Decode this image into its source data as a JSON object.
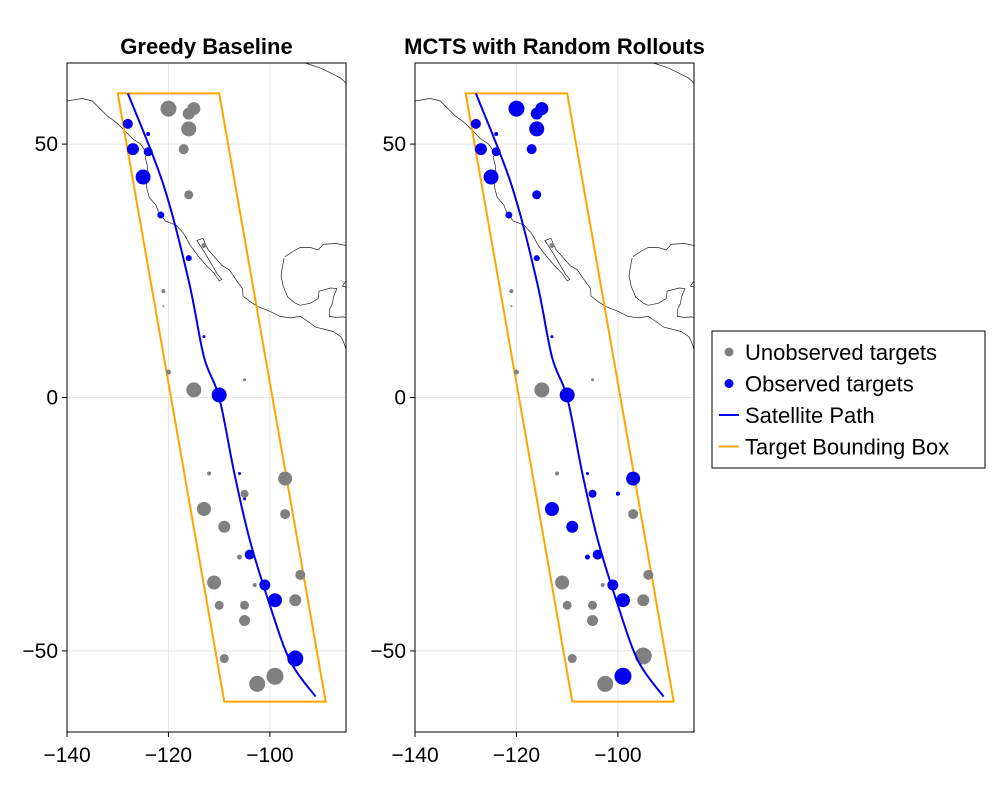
{
  "chart_data": [
    {
      "type": "scatter",
      "title": "Greedy Baseline",
      "xlim": [
        -140,
        -85
      ],
      "ylim": [
        -66,
        66
      ],
      "xticks": [
        -140,
        -120,
        -100
      ],
      "yticks": [
        50,
        0,
        -50
      ],
      "grid": true,
      "unobserved": [
        [
          -120,
          57,
          16
        ],
        [
          -116,
          56,
          12
        ],
        [
          -115,
          57,
          13
        ],
        [
          -116,
          53,
          15
        ],
        [
          -117,
          49,
          10
        ],
        [
          -116,
          40,
          9
        ],
        [
          -113,
          30,
          5
        ],
        [
          -121,
          21,
          4
        ],
        [
          -121,
          18,
          2
        ],
        [
          -120,
          5,
          5
        ],
        [
          -115,
          1.5,
          15
        ],
        [
          -105,
          3.5,
          3
        ],
        [
          -97,
          -16,
          14
        ],
        [
          -105,
          -19,
          8
        ],
        [
          -97,
          -23,
          10
        ],
        [
          -113,
          -22,
          14
        ],
        [
          -109,
          -25.5,
          12
        ],
        [
          -112,
          -15,
          4
        ],
        [
          -111,
          -36.5,
          14
        ],
        [
          -106,
          -31.5,
          5
        ],
        [
          -110,
          -41,
          9
        ],
        [
          -105,
          -41,
          9
        ],
        [
          -103,
          -37,
          4
        ],
        [
          -94,
          -35,
          10
        ],
        [
          -95,
          -40,
          12
        ],
        [
          -105,
          -44,
          11
        ],
        [
          -109,
          -51.5,
          9
        ],
        [
          -102.5,
          -56.5,
          16
        ],
        [
          -99,
          -55,
          17
        ]
      ],
      "observed": [
        [
          -128,
          54,
          10
        ],
        [
          -127,
          49,
          12
        ],
        [
          -124,
          52,
          4
        ],
        [
          -124,
          48.5,
          9
        ],
        [
          -125,
          43.5,
          15
        ],
        [
          -121.5,
          36,
          7
        ],
        [
          -116,
          27.5,
          6
        ],
        [
          -113,
          12,
          3
        ],
        [
          -110,
          0.5,
          15
        ],
        [
          -106,
          -15,
          3
        ],
        [
          -105,
          -20,
          3
        ],
        [
          -104,
          -31,
          10
        ],
        [
          -101,
          -37,
          11
        ],
        [
          -99,
          -40,
          14
        ],
        [
          -95,
          -51.5,
          16
        ]
      ],
      "path": [
        [
          -128,
          60
        ],
        [
          -121,
          42
        ],
        [
          -116,
          23
        ],
        [
          -113,
          8
        ],
        [
          -110,
          0
        ],
        [
          -107,
          -15
        ],
        [
          -104,
          -28
        ],
        [
          -100,
          -41
        ],
        [
          -96,
          -52
        ],
        [
          -91,
          -59
        ]
      ],
      "bounding_box": [
        [
          -130,
          60
        ],
        [
          -110,
          60
        ],
        [
          -89,
          -60
        ],
        [
          -109,
          -60
        ]
      ]
    },
    {
      "type": "scatter",
      "title": "MCTS with Random Rollouts",
      "xlim": [
        -140,
        -85
      ],
      "ylim": [
        -66,
        66
      ],
      "xticks": [
        -140,
        -120,
        -100
      ],
      "yticks": [
        50,
        0,
        -50
      ],
      "grid": true,
      "unobserved": [
        [
          -113,
          30,
          5
        ],
        [
          -121,
          21,
          4
        ],
        [
          -121,
          18,
          2
        ],
        [
          -120,
          5,
          5
        ],
        [
          -115,
          1.5,
          15
        ],
        [
          -105,
          3.5,
          3
        ],
        [
          -97,
          -23,
          10
        ],
        [
          -112,
          -15,
          4
        ],
        [
          -111,
          -36.5,
          14
        ],
        [
          -110,
          -41,
          9
        ],
        [
          -105,
          -41,
          9
        ],
        [
          -103,
          -37,
          4
        ],
        [
          -94,
          -35,
          10
        ],
        [
          -95,
          -40,
          12
        ],
        [
          -105,
          -44,
          11
        ],
        [
          -109,
          -51.5,
          9
        ],
        [
          -102.5,
          -56.5,
          16
        ],
        [
          -95,
          -51,
          17
        ]
      ],
      "observed": [
        [
          -128,
          54,
          10
        ],
        [
          -127,
          49,
          12
        ],
        [
          -124,
          52,
          4
        ],
        [
          -124,
          48.5,
          9
        ],
        [
          -125,
          43.5,
          15
        ],
        [
          -121.5,
          36,
          7
        ],
        [
          -120,
          57,
          16
        ],
        [
          -116,
          56,
          12
        ],
        [
          -115,
          57,
          13
        ],
        [
          -116,
          53,
          15
        ],
        [
          -117,
          49,
          10
        ],
        [
          -116,
          40,
          9
        ],
        [
          -116,
          27.5,
          6
        ],
        [
          -113,
          12,
          3
        ],
        [
          -110,
          0.5,
          15
        ],
        [
          -106,
          -15,
          3
        ],
        [
          -97,
          -16,
          14
        ],
        [
          -105,
          -19,
          8
        ],
        [
          -100,
          -19,
          4
        ],
        [
          -113,
          -22,
          14
        ],
        [
          -109,
          -25.5,
          12
        ],
        [
          -106,
          -31.5,
          5
        ],
        [
          -104,
          -31,
          10
        ],
        [
          -101,
          -37,
          11
        ],
        [
          -99,
          -40,
          14
        ],
        [
          -99,
          -55,
          17
        ]
      ],
      "path": [
        [
          -128,
          60
        ],
        [
          -121,
          42
        ],
        [
          -116,
          23
        ],
        [
          -113,
          8
        ],
        [
          -110,
          0
        ],
        [
          -107,
          -15
        ],
        [
          -104,
          -28
        ],
        [
          -100,
          -41
        ],
        [
          -96,
          -52
        ],
        [
          -91,
          -59
        ]
      ],
      "bounding_box": [
        [
          -130,
          60
        ],
        [
          -110,
          60
        ],
        [
          -89,
          -60
        ],
        [
          -109,
          -60
        ]
      ]
    }
  ],
  "colors": {
    "unobserved": "#808080",
    "observed": "#0000ee",
    "path": "#0000ee",
    "box": "#ffa500"
  },
  "legend": {
    "placement": "right",
    "entries": [
      {
        "label": "Unobserved targets",
        "kind": "dot",
        "color": "#808080"
      },
      {
        "label": "Observed targets",
        "kind": "dot",
        "color": "#0000ee"
      },
      {
        "label": "Satellite Path",
        "kind": "line",
        "color": "#0000ee"
      },
      {
        "label": "Target Bounding Box",
        "kind": "line",
        "color": "#ffa500"
      }
    ]
  }
}
